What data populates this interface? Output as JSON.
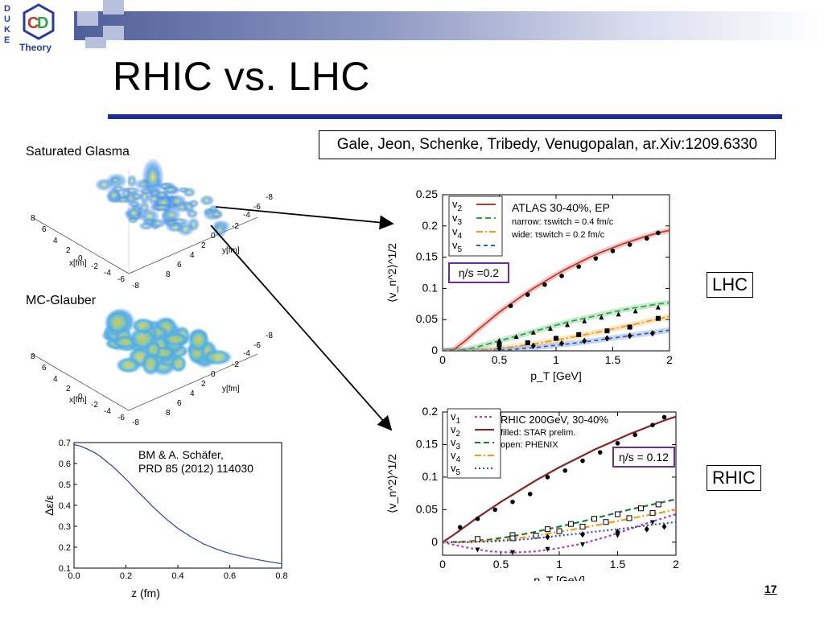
{
  "slide": {
    "logo_letters": [
      "D",
      "U",
      "K",
      "E"
    ],
    "logo_word": "Theory",
    "title": "RHIC vs. LHC",
    "reference": "Gale, Jeon, Schenke, Tribedy, Venugopalan, ar.Xiv:1209.6330",
    "label_glasma": "Saturated Glasma",
    "label_mcglauber": "MC-Glauber",
    "label_lhc": "LHC",
    "label_rhic": "RHIC",
    "page_number": "17",
    "colors": {
      "title_rule": "#1f2f99",
      "header_band": "#4f5f99"
    }
  },
  "surface_plots": {
    "glasma": {
      "x_axis_label": "x[fm]",
      "y_axis_label": "y[fm]",
      "x_ticks": [
        "8",
        "6",
        "4",
        "2",
        "0",
        "-2",
        "-4",
        "-6",
        "-8"
      ],
      "y_ticks": [
        "8",
        "6",
        "4",
        "2",
        "0",
        "-2",
        "-4",
        "-6",
        "-8"
      ]
    },
    "mcglauber": {
      "x_axis_label": "x[fm]",
      "y_axis_label": "y[fm]",
      "x_ticks": [
        "8",
        "6",
        "4",
        "2",
        "0",
        "-2",
        "-4",
        "-6",
        "-8"
      ],
      "y_ticks": [
        "8",
        "6",
        "4",
        "2",
        "0",
        "-2",
        "-4",
        "-6",
        "-8"
      ]
    }
  },
  "chart_data": [
    {
      "id": "lhc",
      "type": "line",
      "xlabel": "p_T [GeV]",
      "ylabel": "⟨v_n^2⟩^1/2",
      "xlim": [
        0,
        2
      ],
      "ylim": [
        0,
        0.25
      ],
      "x_ticks": [
        0,
        0.5,
        1,
        1.5,
        2
      ],
      "x_tick_labels": [
        "0",
        "0.5",
        "1",
        "1.5",
        "2"
      ],
      "y_ticks": [
        0,
        0.05,
        0.1,
        0.15,
        0.2,
        0.25
      ],
      "y_tick_labels": [
        "0",
        "0.05",
        "0.1",
        "0.15",
        "0.2",
        "0.25"
      ],
      "legend_entries": [
        "v2",
        "v3",
        "v4",
        "v5"
      ],
      "annotation_lines": [
        "ATLAS 30-40%, EP",
        "narrow: τswitch = 0.4 fm/c",
        "wide: τswitch = 0.2 fm/c"
      ],
      "parameter_box": "η/s =0.2",
      "grid": false,
      "legend_position": "top-left",
      "series": [
        {
          "legend": "v2",
          "color": "#c0392b",
          "dash": "",
          "curve_x": [
            0,
            0.1,
            0.2,
            0.3,
            0.4,
            0.5,
            0.6,
            0.7,
            0.8,
            0.9,
            1.0,
            1.1,
            1.2,
            1.3,
            1.4,
            1.5,
            1.6,
            1.7,
            1.8,
            1.9,
            2.0
          ],
          "curve_y": [
            0,
            0.002,
            0.016,
            0.032,
            0.047,
            0.062,
            0.075,
            0.088,
            0.1,
            0.111,
            0.122,
            0.132,
            0.141,
            0.15,
            0.158,
            0.165,
            0.172,
            0.178,
            0.184,
            0.189,
            0.193
          ],
          "points_x": [
            0.6,
            0.75,
            0.9,
            1.05,
            1.2,
            1.35,
            1.5,
            1.65,
            1.8,
            1.9
          ],
          "points_y": [
            0.072,
            0.09,
            0.106,
            0.12,
            0.135,
            0.148,
            0.16,
            0.17,
            0.18,
            0.189
          ],
          "marker": "circle"
        },
        {
          "legend": "v3",
          "color": "#27a844",
          "dash": "7,4",
          "curve_x": [
            0,
            0.1,
            0.2,
            0.3,
            0.4,
            0.5,
            0.6,
            0.7,
            0.8,
            0.9,
            1.0,
            1.1,
            1.2,
            1.3,
            1.4,
            1.5,
            1.6,
            1.7,
            1.8,
            1.9,
            2.0
          ],
          "curve_y": [
            0,
            0,
            0.002,
            0.006,
            0.011,
            0.016,
            0.021,
            0.026,
            0.031,
            0.036,
            0.041,
            0.046,
            0.05,
            0.054,
            0.058,
            0.062,
            0.066,
            0.069,
            0.072,
            0.075,
            0.077
          ],
          "points_x": [
            0.5,
            0.65,
            0.8,
            0.95,
            1.1,
            1.25,
            1.4,
            1.55,
            1.7,
            1.9
          ],
          "points_y": [
            0.017,
            0.023,
            0.03,
            0.036,
            0.042,
            0.048,
            0.054,
            0.059,
            0.064,
            0.07
          ],
          "marker": "triangle"
        },
        {
          "legend": "v4",
          "color": "#f39c12",
          "dash": "8,3,2,3",
          "curve_x": [
            0,
            0.2,
            0.4,
            0.6,
            0.8,
            1.0,
            1.2,
            1.4,
            1.6,
            1.8,
            2.0
          ],
          "curve_y": [
            0,
            0,
            0.002,
            0.006,
            0.011,
            0.017,
            0.024,
            0.031,
            0.039,
            0.047,
            0.055
          ],
          "points_x": [
            0.5,
            0.75,
            1.0,
            1.2,
            1.45,
            1.65,
            1.9
          ],
          "points_y": [
            0.01,
            0.013,
            0.02,
            0.026,
            0.032,
            0.038,
            0.052
          ],
          "marker": "square"
        },
        {
          "legend": "v5",
          "color": "#2e5fbf",
          "dash": "5,4",
          "curve_x": [
            0,
            0.2,
            0.4,
            0.6,
            0.8,
            1.0,
            1.2,
            1.4,
            1.6,
            1.8,
            2.0
          ],
          "curve_y": [
            0,
            0,
            0,
            0.002,
            0.005,
            0.009,
            0.013,
            0.018,
            0.023,
            0.028,
            0.033
          ],
          "points_x": [
            0.5,
            0.8,
            1.05,
            1.25,
            1.45,
            1.65,
            1.85
          ],
          "points_y": [
            0.004,
            0.008,
            0.012,
            0.016,
            0.02,
            0.024,
            0.028
          ],
          "marker": "diamond"
        }
      ]
    },
    {
      "id": "rhic",
      "type": "line",
      "xlabel": "p_T [GeV]",
      "ylabel": "⟨v_n^2⟩^1/2",
      "xlim": [
        0,
        2
      ],
      "ylim": [
        -0.02,
        0.2
      ],
      "x_ticks": [
        0,
        0.5,
        1,
        1.5,
        2
      ],
      "x_tick_labels": [
        "0",
        "0.5",
        "1",
        "1.5",
        "2"
      ],
      "y_ticks": [
        0,
        0.05,
        0.1,
        0.15,
        0.2
      ],
      "y_tick_labels": [
        "0",
        "0.05",
        "0.1",
        "0.15",
        "0.2"
      ],
      "legend_entries": [
        "v1",
        "v2",
        "v3",
        "v4",
        "v5"
      ],
      "annotation_lines": [
        "RHIC 200GeV, 30-40%",
        "filled: STAR prelim.",
        "open: PHENIX"
      ],
      "parameter_box": "η/s = 0.12",
      "grid": false,
      "legend_position": "top-left",
      "series": [
        {
          "legend": "v1",
          "color": "#b03fbf",
          "dash": "3,3",
          "curve_x": [
            0,
            0.2,
            0.4,
            0.6,
            0.8,
            1.0,
            1.2,
            1.4,
            1.6,
            1.8,
            2.0
          ],
          "curve_y": [
            0,
            -0.008,
            -0.014,
            -0.016,
            -0.014,
            -0.009,
            -0.002,
            0.008,
            0.02,
            0.032,
            0.043
          ],
          "points_x": [
            0.3,
            0.6,
            0.9,
            1.2,
            1.5,
            1.8
          ],
          "points_y": [
            -0.012,
            -0.016,
            -0.011,
            -0.004,
            0.01,
            0.03
          ],
          "marker": "triangle-down"
        },
        {
          "legend": "v2",
          "color": "#8e2222",
          "dash": "",
          "curve_x": [
            0,
            0.1,
            0.2,
            0.3,
            0.4,
            0.5,
            0.6,
            0.7,
            0.8,
            0.9,
            1.0,
            1.1,
            1.2,
            1.3,
            1.4,
            1.5,
            1.6,
            1.7,
            1.8,
            1.9,
            2.0
          ],
          "curve_y": [
            0,
            0.012,
            0.025,
            0.038,
            0.05,
            0.062,
            0.073,
            0.084,
            0.095,
            0.105,
            0.115,
            0.124,
            0.133,
            0.142,
            0.15,
            0.158,
            0.166,
            0.173,
            0.18,
            0.187,
            0.193
          ],
          "points_x": [
            0.15,
            0.3,
            0.45,
            0.6,
            0.75,
            0.9,
            1.05,
            1.2,
            1.35,
            1.5,
            1.65,
            1.8,
            1.9
          ],
          "points_y": [
            0.023,
            0.036,
            0.05,
            0.062,
            0.074,
            0.1,
            0.11,
            0.125,
            0.138,
            0.152,
            0.165,
            0.18,
            0.192
          ],
          "marker": "circle"
        },
        {
          "legend": "v3",
          "color": "#1f7a3a",
          "dash": "7,4",
          "curve_x": [
            0,
            0.2,
            0.4,
            0.6,
            0.8,
            1.0,
            1.2,
            1.4,
            1.6,
            1.8,
            2.0
          ],
          "curve_y": [
            0,
            0.001,
            0.004,
            0.009,
            0.016,
            0.024,
            0.032,
            0.041,
            0.05,
            0.058,
            0.066
          ],
          "points_x": [
            0.3,
            0.6,
            0.9,
            1.1,
            1.3,
            1.5,
            1.7,
            1.85
          ],
          "points_y": [
            0.005,
            0.011,
            0.02,
            0.028,
            0.036,
            0.043,
            0.052,
            0.058
          ],
          "marker": "square-open"
        },
        {
          "legend": "v4",
          "color": "#f39c12",
          "dash": "8,3,2,3",
          "curve_x": [
            0,
            0.2,
            0.4,
            0.6,
            0.8,
            1.0,
            1.2,
            1.4,
            1.6,
            1.8,
            2.0
          ],
          "curve_y": [
            0,
            0,
            0.002,
            0.005,
            0.01,
            0.016,
            0.022,
            0.029,
            0.036,
            0.043,
            0.05
          ],
          "points_x": [
            0.6,
            0.8,
            1.0,
            1.2,
            1.4,
            1.6,
            1.8
          ],
          "points_y": [
            0.006,
            0.01,
            0.017,
            0.024,
            0.031,
            0.037,
            0.045
          ],
          "marker": "square-open"
        },
        {
          "legend": "v5",
          "color": "#2e4fbf",
          "dash": "2,3",
          "curve_x": [
            0,
            0.2,
            0.4,
            0.6,
            0.8,
            1.0,
            1.2,
            1.4,
            1.6,
            1.8,
            2.0
          ],
          "curve_y": [
            0,
            0,
            0.001,
            0.003,
            0.006,
            0.01,
            0.014,
            0.018,
            0.022,
            0.027,
            0.031
          ],
          "points_x": [
            0.9,
            1.2,
            1.5,
            1.75,
            1.9
          ],
          "points_y": [
            0.008,
            0.012,
            0.016,
            0.02,
            0.024
          ],
          "marker": "diamond"
        }
      ]
    },
    {
      "id": "eccentricity",
      "type": "line",
      "xlabel": "z (fm)",
      "ylabel": "Δε/ε",
      "xlim": [
        0,
        0.8
      ],
      "ylim": [
        0.1,
        0.7
      ],
      "x_ticks": [
        0,
        0.2,
        0.4,
        0.6,
        0.8
      ],
      "x_tick_labels": [
        "0.0",
        "0.2",
        "0.4",
        "0.6",
        "0.8"
      ],
      "y_ticks": [
        0.1,
        0.2,
        0.3,
        0.4,
        0.5,
        0.6,
        0.7
      ],
      "y_tick_labels": [
        "0.1",
        "0.2",
        "0.3",
        "0.4",
        "0.5",
        "0.6",
        "0.7"
      ],
      "annotation_lines": [
        "BM & A. Schäfer,",
        "PRD 85 (2012) 114030"
      ],
      "grid": false,
      "series": [
        {
          "color": "#2b3fb0",
          "dash": "",
          "curve_x": [
            0,
            0.025,
            0.05,
            0.075,
            0.1,
            0.125,
            0.15,
            0.175,
            0.2,
            0.225,
            0.25,
            0.275,
            0.3,
            0.35,
            0.4,
            0.45,
            0.5,
            0.55,
            0.6,
            0.65,
            0.7,
            0.75,
            0.8
          ],
          "curve_y": [
            0.69,
            0.683,
            0.67,
            0.655,
            0.635,
            0.61,
            0.585,
            0.555,
            0.525,
            0.493,
            0.46,
            0.43,
            0.398,
            0.34,
            0.29,
            0.25,
            0.215,
            0.19,
            0.17,
            0.155,
            0.142,
            0.131,
            0.121
          ]
        }
      ]
    }
  ]
}
